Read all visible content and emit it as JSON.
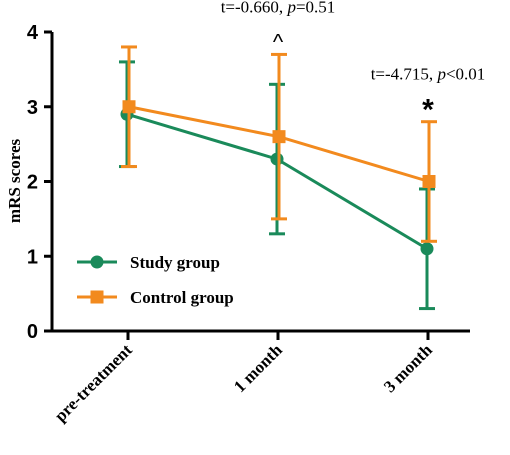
{
  "chart_data": {
    "type": "line",
    "categories": [
      "pre-treatment",
      "1 month",
      "3 month"
    ],
    "ylabel": "mRS scores",
    "ylim": [
      0,
      4
    ],
    "yticks": [
      "0",
      "1",
      "2",
      "3",
      "4"
    ],
    "grid": false,
    "legend_position": "bottom-left",
    "series": [
      {
        "name": "Study group",
        "color": "#1a8a5a",
        "marker": "circle",
        "values": [
          2.9,
          2.3,
          1.1
        ],
        "err_low": [
          2.2,
          1.3,
          0.3
        ],
        "err_high": [
          3.6,
          3.3,
          1.9
        ]
      },
      {
        "name": "Control group",
        "color": "#f28a1e",
        "marker": "square",
        "values": [
          3.0,
          2.6,
          2.0
        ],
        "err_low": [
          2.2,
          1.5,
          1.2
        ],
        "err_high": [
          3.8,
          3.7,
          2.8
        ]
      }
    ],
    "annotations": [
      {
        "category": "1 month",
        "prefix": "t=-0.660, ",
        "p_symbol": "p",
        "suffix": "=0.51",
        "mark": "^"
      },
      {
        "category": "3 month",
        "prefix": "t=-4.715, ",
        "p_symbol": "p",
        "suffix": "<0.01",
        "mark": "*"
      }
    ]
  }
}
